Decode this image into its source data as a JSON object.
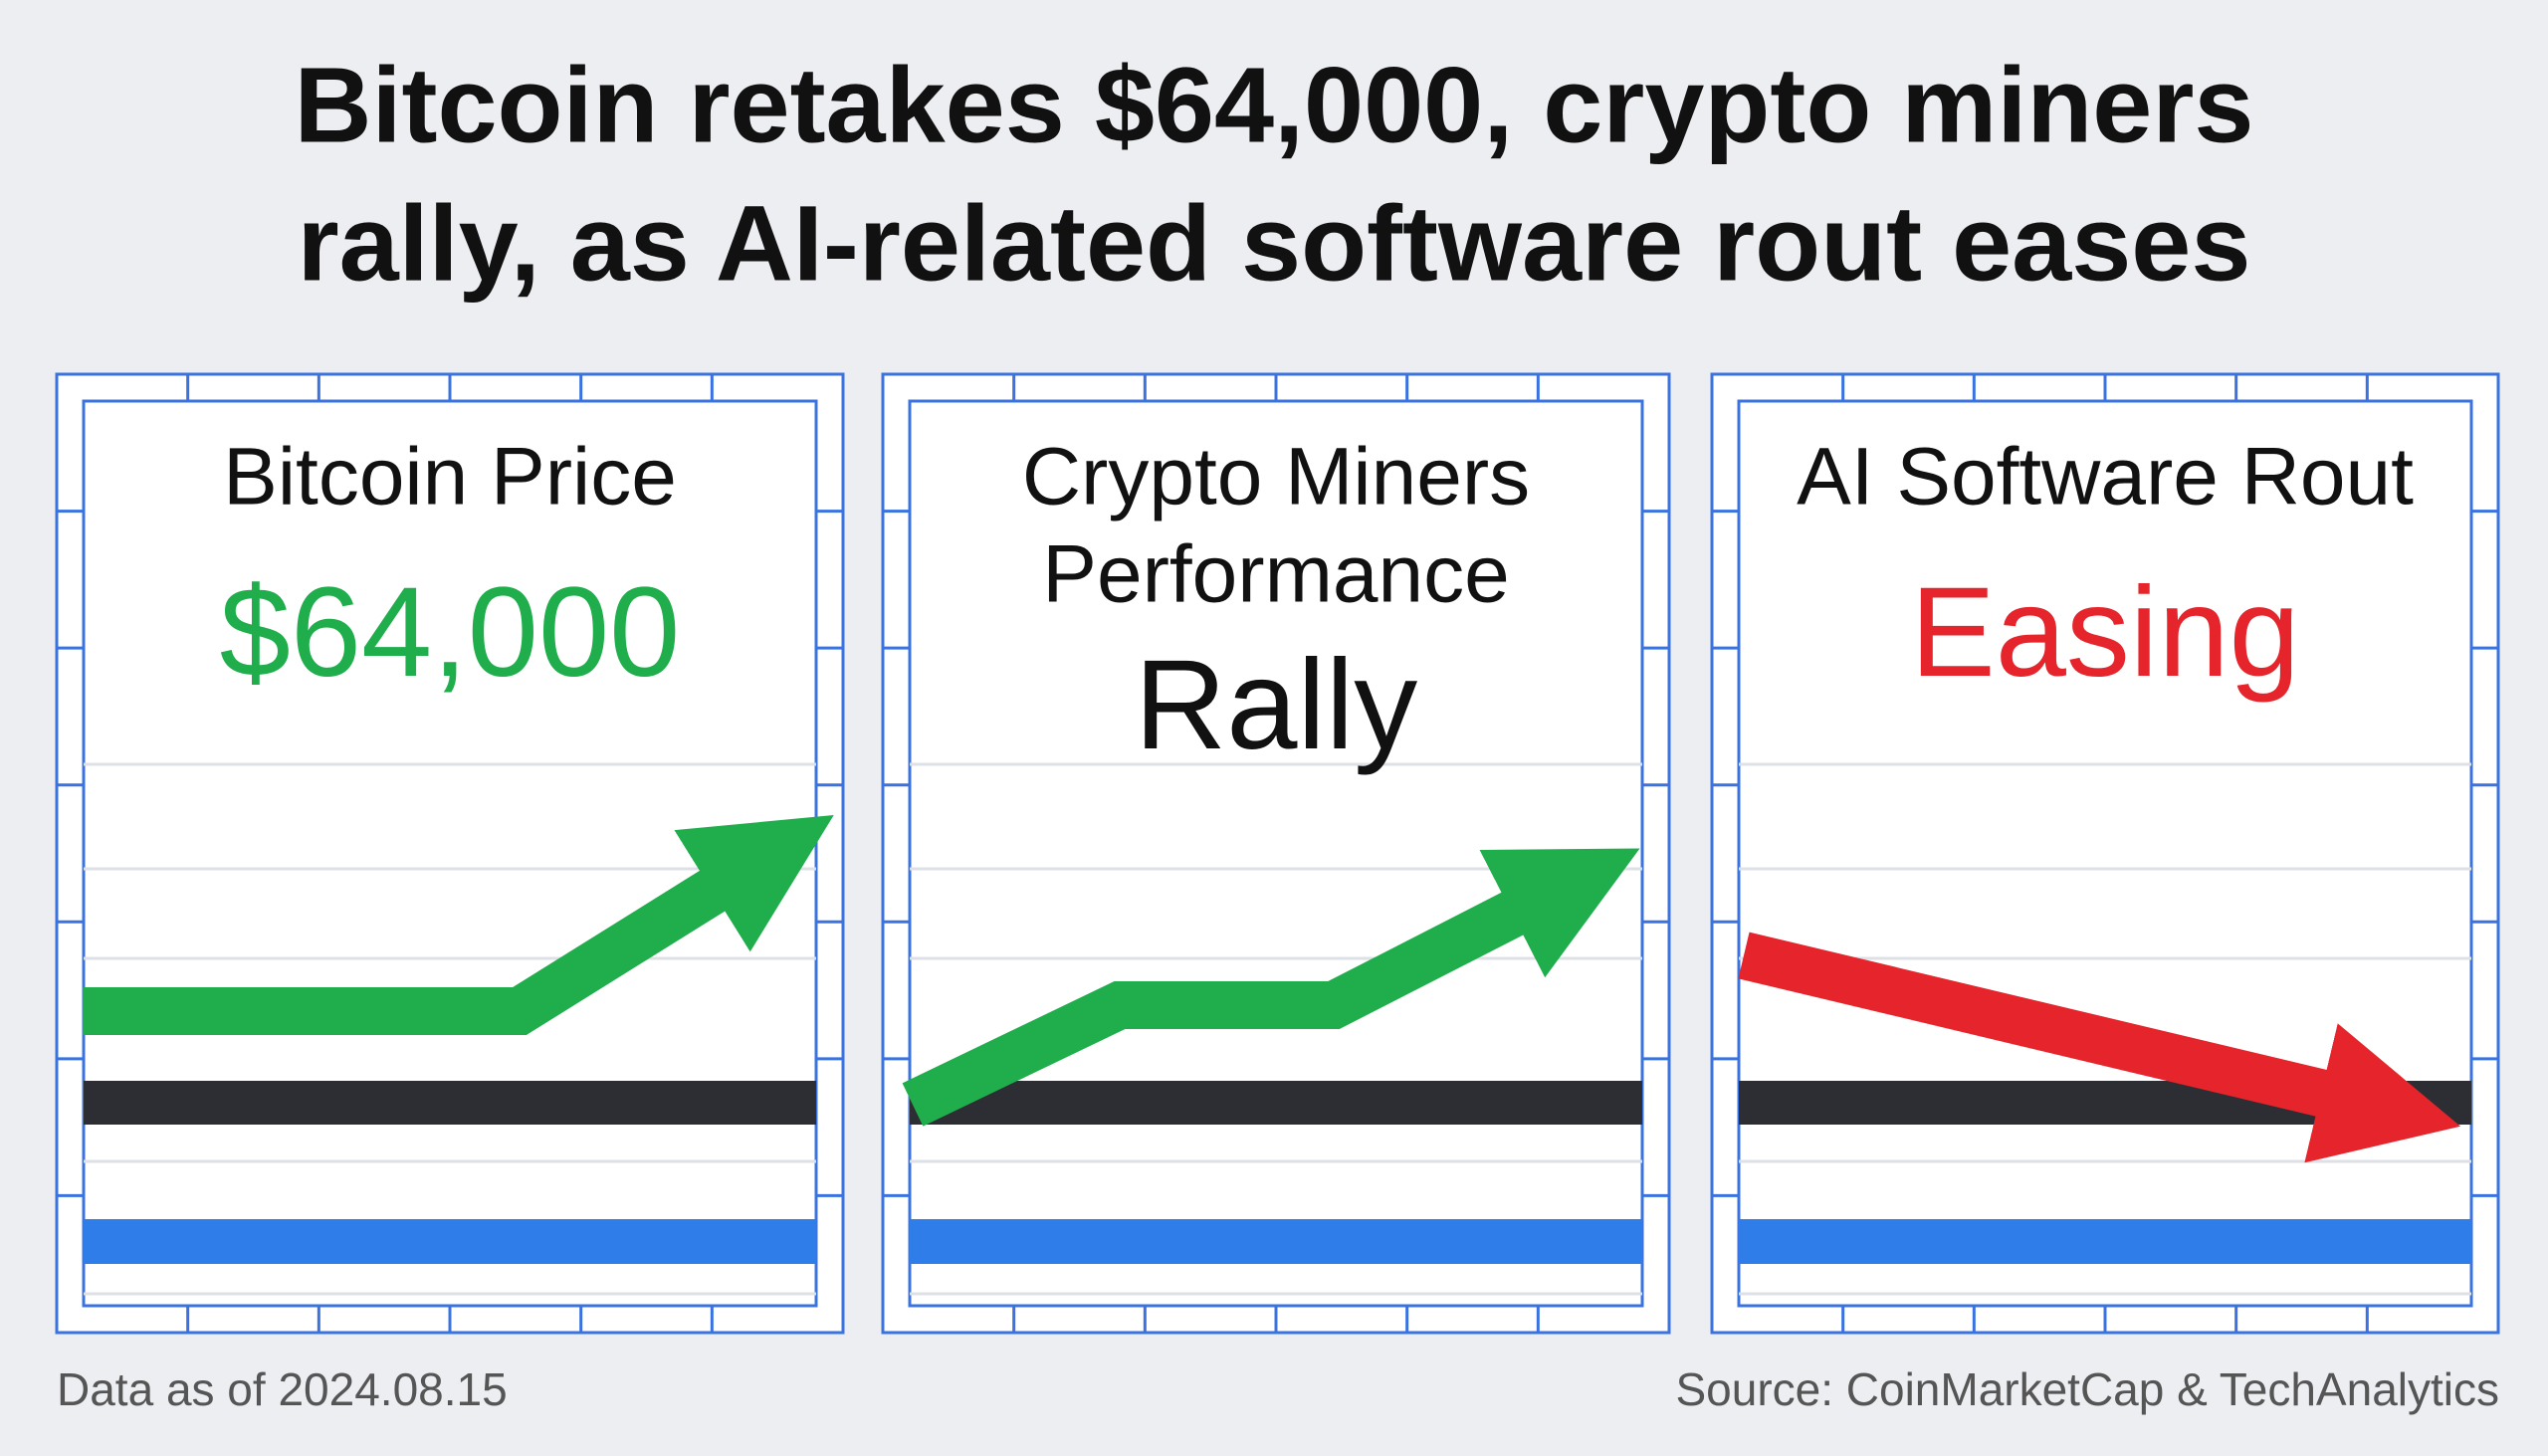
{
  "header": {
    "title_lines": [
      "Bitcoin retakes $64,000, crypto miners",
      "rally, as AI-related software rout eases"
    ]
  },
  "panels": [
    {
      "title_lines": [
        "Bitcoin Price"
      ],
      "value": "$64,000"
    },
    {
      "title_lines": [
        "Crypto Miners",
        "Performance"
      ],
      "value": "Rally"
    },
    {
      "title_lines": [
        "AI Software Rout"
      ],
      "value": "Easing"
    }
  ],
  "footer": {
    "note": "Data as of 2024.08.15",
    "source": "Source: CoinMarketCap & TechAnalytics"
  }
}
